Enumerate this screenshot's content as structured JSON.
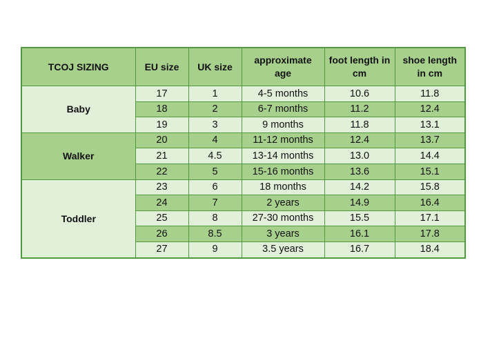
{
  "table": {
    "headers": {
      "col1": "TCOJ SIZING",
      "col2": "EU size",
      "col3": "UK size",
      "col4_line1": "approximate",
      "col4_line2": "age",
      "col5_line1": "foot length in",
      "col5_line2": "cm",
      "col6_line1": "shoe length",
      "col6_line2": "in cm"
    },
    "groups": [
      "Baby",
      "Walker",
      "Toddler"
    ],
    "rows": [
      {
        "eu": "17",
        "uk": "1",
        "age": "4-5 months",
        "foot": "10.6",
        "shoe": "11.8"
      },
      {
        "eu": "18",
        "uk": "2",
        "age": "6-7 months",
        "foot": "11.2",
        "shoe": "12.4"
      },
      {
        "eu": "19",
        "uk": "3",
        "age": "9 months",
        "foot": "11.8",
        "shoe": "13.1"
      },
      {
        "eu": "20",
        "uk": "4",
        "age": "11-12 months",
        "foot": "12.4",
        "shoe": "13.7"
      },
      {
        "eu": "21",
        "uk": "4.5",
        "age": "13-14 months",
        "foot": "13.0",
        "shoe": "14.4"
      },
      {
        "eu": "22",
        "uk": "5",
        "age": "15-16 months",
        "foot": "13.6",
        "shoe": "15.1"
      },
      {
        "eu": "23",
        "uk": "6",
        "age": "18 months",
        "foot": "14.2",
        "shoe": "15.8"
      },
      {
        "eu": "24",
        "uk": "7",
        "age": "2 years",
        "foot": "14.9",
        "shoe": "16.4"
      },
      {
        "eu": "25",
        "uk": "8",
        "age": "27-30 months",
        "foot": "15.5",
        "shoe": "17.1"
      },
      {
        "eu": "26",
        "uk": "8.5",
        "age": "3 years",
        "foot": "16.1",
        "shoe": "17.8"
      },
      {
        "eu": "27",
        "uk": "9",
        "age": "3.5 years",
        "foot": "16.7",
        "shoe": "18.4"
      }
    ]
  },
  "colors": {
    "border": "#4f9a3f",
    "header_fill": "#a8d08d",
    "row_light": "#e2efd9",
    "row_dark": "#a8d08d"
  }
}
